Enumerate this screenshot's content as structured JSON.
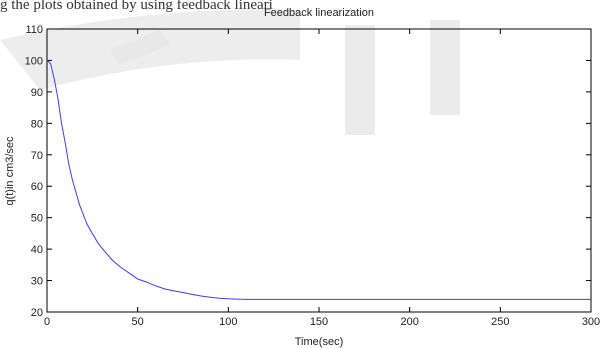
{
  "page": {
    "cut_header_text": "g the plots obtained by using feedback lineari"
  },
  "chart_data": {
    "type": "line",
    "title": "Feedback linearization",
    "xlabel": "Time(sec)",
    "ylabel": "q(t)in cm3/sec",
    "xlim": [
      0,
      300
    ],
    "ylim": [
      20,
      110
    ],
    "xticks": [
      0,
      50,
      100,
      150,
      200,
      250,
      300
    ],
    "yticks": [
      20,
      30,
      40,
      50,
      60,
      70,
      80,
      90,
      100,
      110
    ],
    "grid": false,
    "series": [
      {
        "color": "#3b3bff",
        "x": [
          0,
          2,
          4,
          6,
          8,
          10,
          12,
          14,
          16,
          18,
          20,
          22,
          25,
          28,
          30,
          33,
          36,
          40,
          45,
          50,
          55,
          60,
          65,
          70,
          75,
          80,
          85,
          90,
          95,
          100,
          105,
          110,
          120,
          140,
          160,
          200,
          250,
          300
        ],
        "y": [
          100,
          99,
          94,
          88,
          80,
          74,
          67,
          62,
          58,
          54,
          51,
          48,
          45,
          42,
          40.5,
          38.5,
          36.5,
          34.5,
          32.5,
          30.5,
          29.5,
          28.3,
          27.3,
          26.7,
          26.2,
          25.6,
          25.1,
          24.7,
          24.4,
          24.2,
          24.1,
          24,
          24,
          24,
          24,
          24,
          24,
          24
        ]
      }
    ]
  },
  "colors": {
    "line": "#3b3bff",
    "axis": "#000000",
    "watermark": "#d9d9d9"
  }
}
